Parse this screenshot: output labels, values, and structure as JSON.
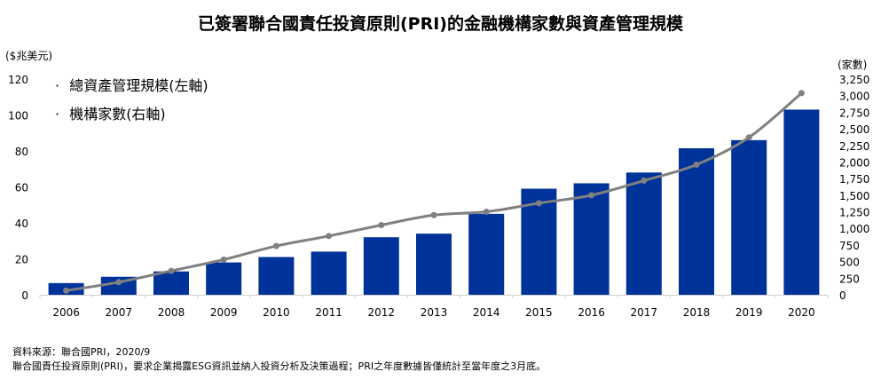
{
  "chart_data": {
    "type": "bar+line",
    "title": "已簽署聯合國責任投資原則(PRI)的金融機構家數與資產管理規模",
    "categories": [
      "2006",
      "2007",
      "2008",
      "2009",
      "2010",
      "2011",
      "2012",
      "2013",
      "2014",
      "2015",
      "2016",
      "2017",
      "2018",
      "2019",
      "2020"
    ],
    "series": [
      {
        "name": "總資產管理規模(左軸)",
        "type": "bar",
        "axis": "left",
        "color": "#003399",
        "values": [
          6.5,
          10,
          13,
          18,
          21,
          24,
          32,
          34,
          45,
          59,
          62,
          68,
          81.5,
          86,
          103
        ]
      },
      {
        "name": "機構家數(右軸)",
        "type": "line",
        "axis": "right",
        "color": "#808080",
        "values": [
          63,
          190,
          360,
          530,
          735,
          885,
          1050,
          1200,
          1250,
          1380,
          1500,
          1720,
          1960,
          2370,
          3038
        ]
      }
    ],
    "ylabel_left": "($兆美元)",
    "ylabel_right": "(家數)",
    "ylim_left": [
      0,
      120
    ],
    "ylim_right": [
      0,
      3250
    ],
    "yticks_left": [
      "0",
      "20",
      "40",
      "60",
      "80",
      "100",
      "120"
    ],
    "yticks_right": [
      "0",
      "250",
      "500",
      "750",
      "1,000",
      "1,250",
      "1,500",
      "1,750",
      "2,000",
      "2,250",
      "2,500",
      "2,750",
      "3,000",
      "3,250"
    ],
    "grid": false,
    "legend_position": "top-left"
  },
  "legend": {
    "bullet": "·"
  },
  "footer": {
    "source": "資料來源：聯合國PRI，2020/9",
    "note": "聯合國責任投資原則(PRI)，要求企業揭露ESG資訊並納入投資分析及決策過程；PRI之年度數據皆僅統計至當年度之3月底。"
  }
}
